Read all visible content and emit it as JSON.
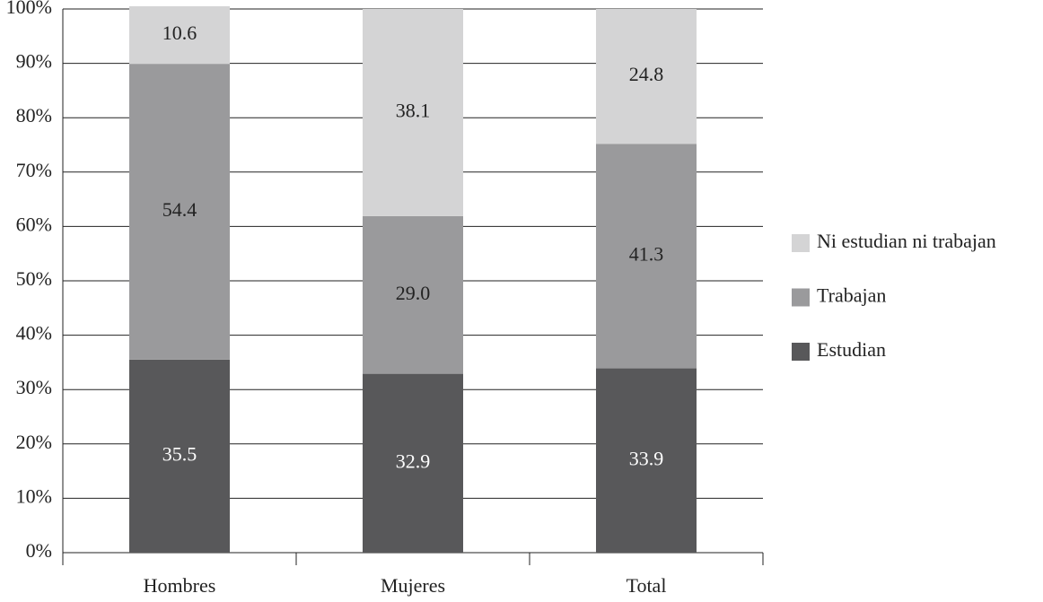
{
  "chart_data": {
    "type": "stacked_bar",
    "categories": [
      "Hombres",
      "Mujeres",
      "Total"
    ],
    "series": [
      {
        "name": "Estudian",
        "color": "#58585a",
        "values": [
          35.5,
          32.9,
          33.9
        ],
        "value_labels": [
          "35.5",
          "32.9",
          "33.9"
        ]
      },
      {
        "name": "Trabajan",
        "color": "#9a9a9c",
        "values": [
          54.4,
          29.0,
          41.3
        ],
        "value_labels": [
          "54.4",
          "29.0",
          "41.3"
        ]
      },
      {
        "name": "Ni estudian ni trabajan",
        "color": "#d4d4d5",
        "values": [
          10.6,
          38.1,
          24.8
        ],
        "value_labels": [
          "10.6",
          "38.1",
          "24.8"
        ]
      }
    ],
    "ylim": [
      0,
      100
    ],
    "yticks": [
      {
        "value": 0,
        "label": "0%"
      },
      {
        "value": 10,
        "label": "10%"
      },
      {
        "value": 20,
        "label": "20%"
      },
      {
        "value": 30,
        "label": "30%"
      },
      {
        "value": 40,
        "label": "40%"
      },
      {
        "value": 50,
        "label": "50%"
      },
      {
        "value": 60,
        "label": "60%"
      },
      {
        "value": 70,
        "label": "70%"
      },
      {
        "value": 80,
        "label": "80%"
      },
      {
        "value": 90,
        "label": "90%"
      },
      {
        "value": 100,
        "label": "100%"
      }
    ],
    "grid": true,
    "legend": "right"
  }
}
